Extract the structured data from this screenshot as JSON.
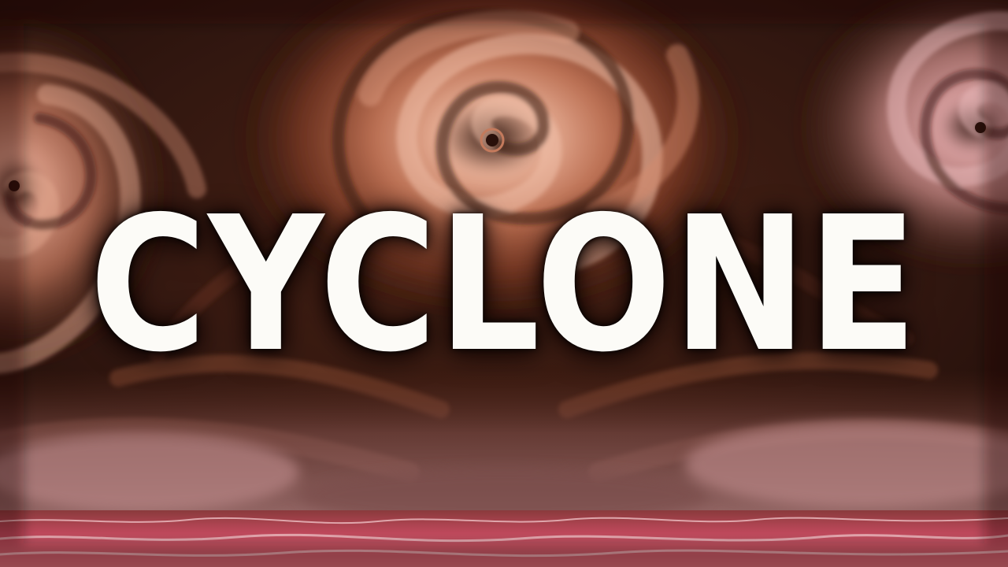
{
  "title": {
    "text": "CYCLONE",
    "color": "#fcfbf7"
  },
  "palette": {
    "sky_dark": "#2a130b",
    "cloud_mid": "#9a4f34",
    "cloud_light": "#e4a78c",
    "cloud_pink": "#c98a8a",
    "sea": "#c0495c",
    "foam": "#f0c6c8"
  }
}
